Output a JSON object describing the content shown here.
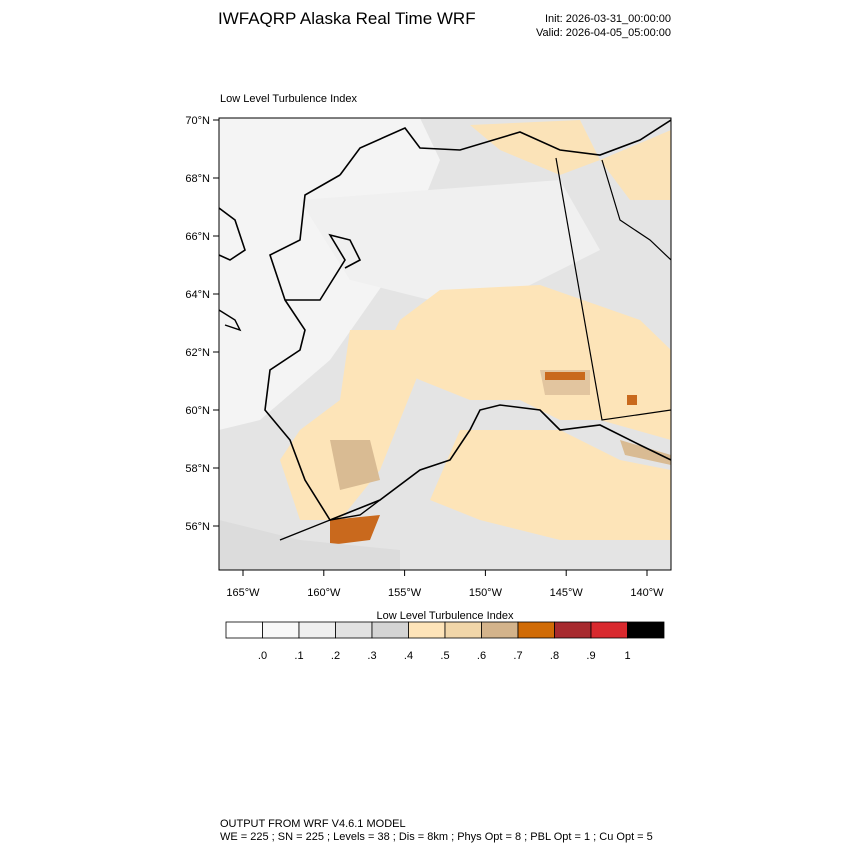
{
  "header": {
    "title": "IWFAQRP Alaska Real Time WRF",
    "init": "Init: 2026-03-31_00:00:00",
    "valid": "Valid: 2026-04-05_05:00:00"
  },
  "map": {
    "title": "Low Level Turbulence Index",
    "lat_ticks": [
      {
        "value": 70,
        "label": "70°N"
      },
      {
        "value": 68,
        "label": "68°N"
      },
      {
        "value": 66,
        "label": "66°N"
      },
      {
        "value": 64,
        "label": "64°N"
      },
      {
        "value": 62,
        "label": "62°N"
      },
      {
        "value": 60,
        "label": "60°N"
      },
      {
        "value": 58,
        "label": "58°N"
      },
      {
        "value": 56,
        "label": "56°N"
      }
    ],
    "lon_ticks": [
      {
        "value": -165,
        "label": "165°W"
      },
      {
        "value": -160,
        "label": "160°W"
      },
      {
        "value": -155,
        "label": "155°W"
      },
      {
        "value": -150,
        "label": "150°W"
      },
      {
        "value": -145,
        "label": "145°W"
      },
      {
        "value": -140,
        "label": "140°W"
      }
    ]
  },
  "colorbar": {
    "title": "Low Level Turbulence Index",
    "colors": [
      "#ffffff",
      "#f8f8f8",
      "#efefef",
      "#e2e2e2",
      "#d4d4d4",
      "#fee4b9",
      "#f1d6a9",
      "#d3b38b",
      "#d06b06",
      "#a72a2e",
      "#d8292e",
      "#000000"
    ],
    "ticks": [
      {
        "value": 0,
        "label": ".0"
      },
      {
        "value": 0.1,
        "label": ".1"
      },
      {
        "value": 0.2,
        "label": ".2"
      },
      {
        "value": 0.3,
        "label": ".3"
      },
      {
        "value": 0.4,
        "label": ".4"
      },
      {
        "value": 0.5,
        "label": ".5"
      },
      {
        "value": 0.6,
        "label": ".6"
      },
      {
        "value": 0.7,
        "label": ".7"
      },
      {
        "value": 0.8,
        "label": ".8"
      },
      {
        "value": 0.9,
        "label": ".9"
      },
      {
        "value": 1,
        "label": "1"
      }
    ]
  },
  "footer": {
    "line1": "OUTPUT FROM WRF V4.6.1 MODEL",
    "line2": "WE = 225 ; SN = 225 ; Levels = 38 ; Dis = 8km ; Phys Opt = 8 ; PBL Opt = 1 ; Cu Opt = 5"
  }
}
